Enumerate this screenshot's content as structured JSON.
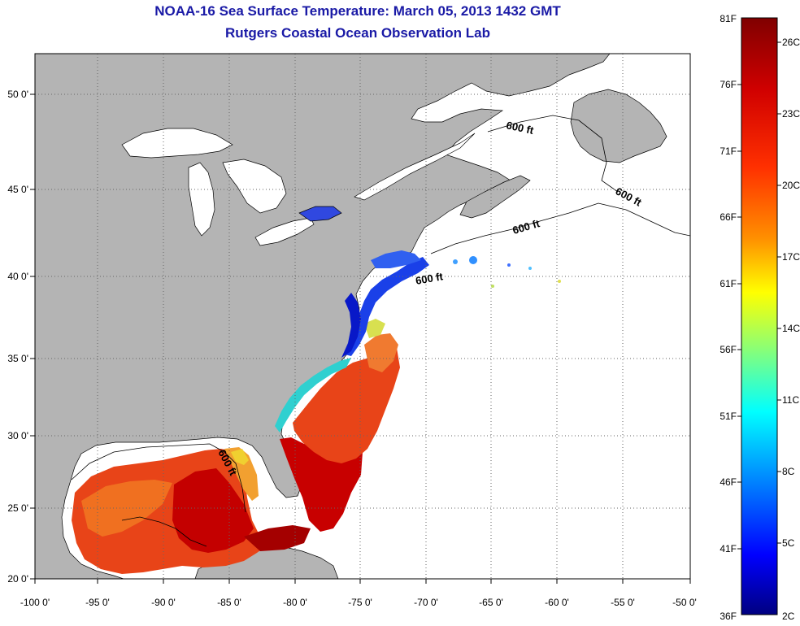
{
  "title": "NOAA-16 Sea Surface Temperature:  March 05, 2013 1432 GMT",
  "subtitle": "Rutgers Coastal Ocean Observation Lab",
  "map": {
    "lon_ticks": [
      "-100 0'",
      "-95 0'",
      "-90 0'",
      "-85 0'",
      "-80 0'",
      "-75 0'",
      "-70 0'",
      "-65 0'",
      "-60 0'",
      "-55 0'",
      "-50 0'"
    ],
    "lat_ticks": [
      "50 0'",
      "45 0'",
      "40 0'",
      "35 0'",
      "30 0'",
      "25 0'",
      "20 0'"
    ],
    "contour_label": "600 ft",
    "land_color": "#b4b4b4"
  },
  "colorbar": {
    "f_labels": [
      "81F",
      "76F",
      "71F",
      "66F",
      "61F",
      "56F",
      "51F",
      "46F",
      "41F",
      "36F"
    ],
    "c_labels": [
      "26C",
      "23C",
      "20C",
      "17C",
      "14C",
      "11C",
      "8C",
      "5C",
      "2C"
    ],
    "colors": [
      "#800000",
      "#ff0000",
      "#ff8000",
      "#ffff00",
      "#80ff80",
      "#00ffff",
      "#0080ff",
      "#0000ff",
      "#000090"
    ]
  }
}
